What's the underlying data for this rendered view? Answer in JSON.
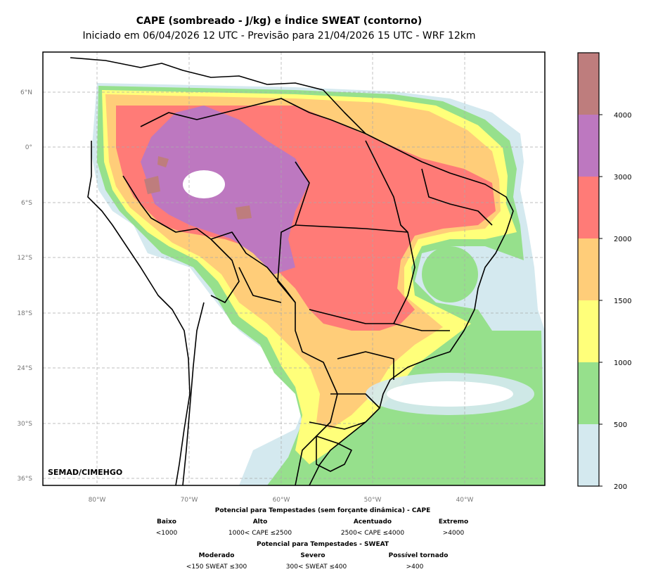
{
  "title": "CAPE (sombreado - J/kg) e Índice SWEAT (contorno)",
  "subtitle": "Iniciado em 06/04/2026 12 UTC - Previsão para 21/04/2026 15 UTC - WRF 12km",
  "credit": "SEMAD/CIMEHGO",
  "lat_labels": [
    "6°N",
    "0°",
    "6°S",
    "12°S",
    "18°S",
    "24°S",
    "30°S",
    "36°S"
  ],
  "lon_labels": [
    "80°W",
    "70°W",
    "60°W",
    "50°W",
    "40°W"
  ],
  "colorbar": {
    "ticks": [
      "200",
      "500",
      "1000",
      "1500",
      "2000",
      "3000",
      "4000"
    ],
    "colors": [
      "#d4e9ef",
      "#96e08c",
      "#ffff7a",
      "#ffcd79",
      "#ff7b77",
      "#bd78c0",
      "#be7d7d"
    ]
  },
  "cape_legend": {
    "heading": "Potencial para Tempestades (sem forçante dinâmica) - CAPE",
    "items": [
      {
        "name": "Baixo",
        "range": "<1000"
      },
      {
        "name": "Alto",
        "range": "1000< CAPE ≤2500"
      },
      {
        "name": "Acentuado",
        "range": "2500< CAPE ≤4000"
      },
      {
        "name": "Extremo",
        "range": ">4000"
      }
    ]
  },
  "sweat_legend": {
    "heading": "Potencial para Tempestades - SWEAT",
    "items": [
      {
        "name": "Moderado",
        "range": "<150 SWEAT ≤300"
      },
      {
        "name": "Severo",
        "range": "300< SWEAT ≤400"
      },
      {
        "name": "Possível tornado",
        "range": ">400"
      }
    ]
  }
}
